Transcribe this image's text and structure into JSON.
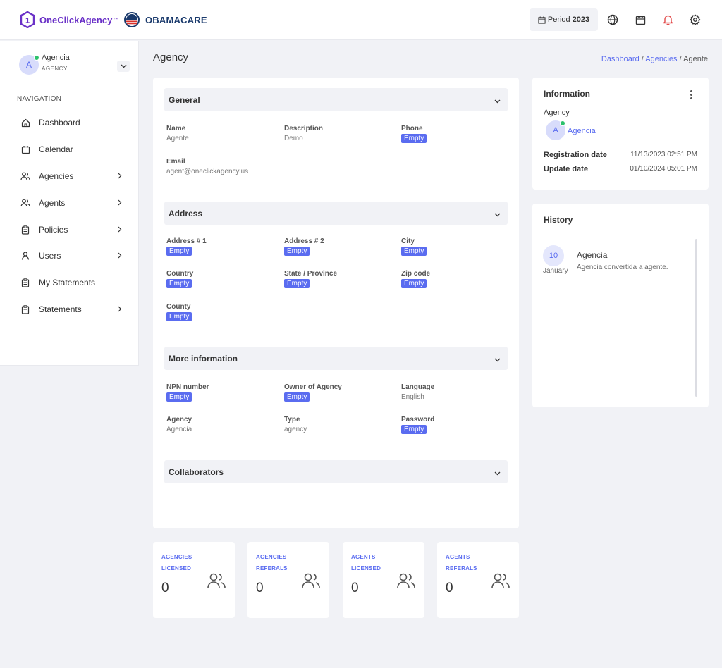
{
  "header": {
    "brand_name": "OneClickAgency",
    "brand_tm": "™",
    "brand_number": "1",
    "partner_name": "OBAMACARE",
    "period_label": "Period",
    "period_year": "2023",
    "icons": [
      "globe-icon",
      "calendar-icon",
      "bell-icon",
      "settings-icon"
    ]
  },
  "sidebar": {
    "user_initial": "A",
    "user_name": "Agencia",
    "user_role": "AGENCY",
    "nav_heading": "NAVIGATION",
    "items": [
      {
        "label": "Dashboard",
        "icon": "home-icon",
        "has_chevron": false
      },
      {
        "label": "Calendar",
        "icon": "calendar-icon",
        "has_chevron": false
      },
      {
        "label": "Agencies",
        "icon": "users-icon",
        "has_chevron": true
      },
      {
        "label": "Agents",
        "icon": "users-icon",
        "has_chevron": true
      },
      {
        "label": "Policies",
        "icon": "clipboard-icon",
        "has_chevron": true
      },
      {
        "label": "Users",
        "icon": "user-icon",
        "has_chevron": true
      },
      {
        "label": "My Statements",
        "icon": "clipboard-icon",
        "has_chevron": false
      },
      {
        "label": "Statements",
        "icon": "clipboard-icon",
        "has_chevron": true
      }
    ]
  },
  "page": {
    "title": "Agency",
    "breadcrumb": {
      "dashboard": "Dashboard",
      "agencies": "Agencies",
      "current": "Agente",
      "separator": "/"
    }
  },
  "general": {
    "title": "General",
    "name_label": "Name",
    "name_value": "Agente",
    "description_label": "Description",
    "description_value": "Demo",
    "phone_label": "Phone",
    "phone_value": "Empty",
    "email_label": "Email",
    "email_value": "agent@oneclickagency.us"
  },
  "address": {
    "title": "Address",
    "address1_label": "Address # 1",
    "address1_value": "Empty",
    "address2_label": "Address # 2",
    "address2_value": "Empty",
    "city_label": "City",
    "city_value": "Empty",
    "country_label": "Country",
    "country_value": "Empty",
    "state_label": "State / Province",
    "state_value": "Empty",
    "zip_label": "Zip code",
    "zip_value": "Empty",
    "county_label": "County",
    "county_value": "Empty"
  },
  "more_info": {
    "title": "More information",
    "npn_label": "NPN number",
    "npn_value": "Empty",
    "owner_label": "Owner of Agency",
    "owner_value": "Empty",
    "language_label": "Language",
    "language_value": "English",
    "agency_label": "Agency",
    "agency_value": "Agencia",
    "type_label": "Type",
    "type_value": "agency",
    "password_label": "Password",
    "password_value": "Empty"
  },
  "collaborators": {
    "title": "Collaborators"
  },
  "information": {
    "title": "Information",
    "agency_label": "Agency",
    "agency_initial": "A",
    "agency_name": "Agencia",
    "registration_label": "Registration date",
    "registration_value": "11/13/2023 02:51 PM",
    "update_label": "Update date",
    "update_value": "01/10/2024 05:01 PM"
  },
  "history": {
    "title": "History",
    "entries": [
      {
        "day": "10",
        "month": "January",
        "title": "Agencia",
        "text": "Agencia convertida a agente."
      }
    ]
  },
  "stats": [
    {
      "label": "AGENCIES LICENSED",
      "value": "0"
    },
    {
      "label": "AGENCIES REFERALS",
      "value": "0"
    },
    {
      "label": "AGENTS LICENSED",
      "value": "0"
    },
    {
      "label": "AGENTS REFERALS",
      "value": "0"
    }
  ],
  "colors": {
    "accent": "#5a6cf0",
    "brand": "#6a31c7",
    "online": "#2cc26b",
    "background": "#f1f2f6"
  }
}
